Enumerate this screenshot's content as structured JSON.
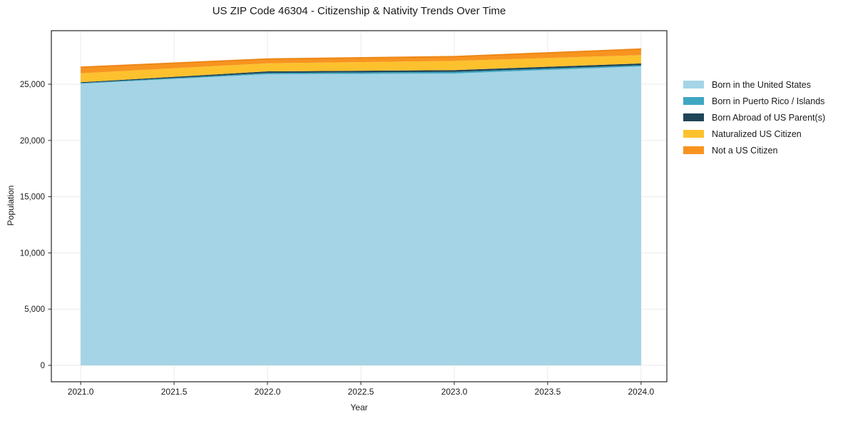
{
  "figure": {
    "title": "US ZIP Code 46304 - Citizenship & Nativity Trends Over Time",
    "xlabel": "Year",
    "ylabel": "Population"
  },
  "chart_data": {
    "type": "area",
    "stacked": true,
    "title": "US ZIP Code 46304 - Citizenship & Nativity Trends Over Time",
    "xlabel": "Year",
    "ylabel": "Population",
    "x": [
      2021,
      2022,
      2023,
      2024
    ],
    "series": [
      {
        "name": "Born in the United States",
        "color": "#A4D4E6",
        "values": [
          25050,
          25890,
          25950,
          26590
        ]
      },
      {
        "name": "Born in Puerto Rico / Islands",
        "color": "#3FA6C2",
        "values": [
          50,
          110,
          150,
          100
        ]
      },
      {
        "name": "Born Abroad of US Parent(s)",
        "color": "#1F4557",
        "values": [
          70,
          140,
          160,
          160
        ]
      },
      {
        "name": "Naturalized US Citizen",
        "color": "#FDC12E",
        "values": [
          800,
          720,
          810,
          740
        ]
      },
      {
        "name": "Not a US Citizen",
        "color": "#F79420",
        "values": [
          540,
          380,
          380,
          530
        ]
      }
    ],
    "totals": [
      26510,
      27240,
      27450,
      28120
    ],
    "xticks": [
      2021.0,
      2021.5,
      2022.0,
      2022.5,
      2023.0,
      2023.5,
      2024.0
    ],
    "xtick_labels": [
      "2021.0",
      "2021.5",
      "2022.0",
      "2022.5",
      "2023.0",
      "2023.5",
      "2024.0"
    ],
    "yticks": [
      0,
      5000,
      10000,
      15000,
      20000,
      25000
    ],
    "ytick_labels": [
      "0",
      "5,000",
      "10,000",
      "15,000",
      "20,000",
      "25,000"
    ],
    "xlim": [
      2020.843,
      2024.138
    ],
    "ylim": [
      -1460,
      29760
    ],
    "grid": true,
    "grid_color": "#eaeaea",
    "spine_color": "#262626",
    "top_edge_color": "#ED8718",
    "legend_position": "right outside"
  }
}
